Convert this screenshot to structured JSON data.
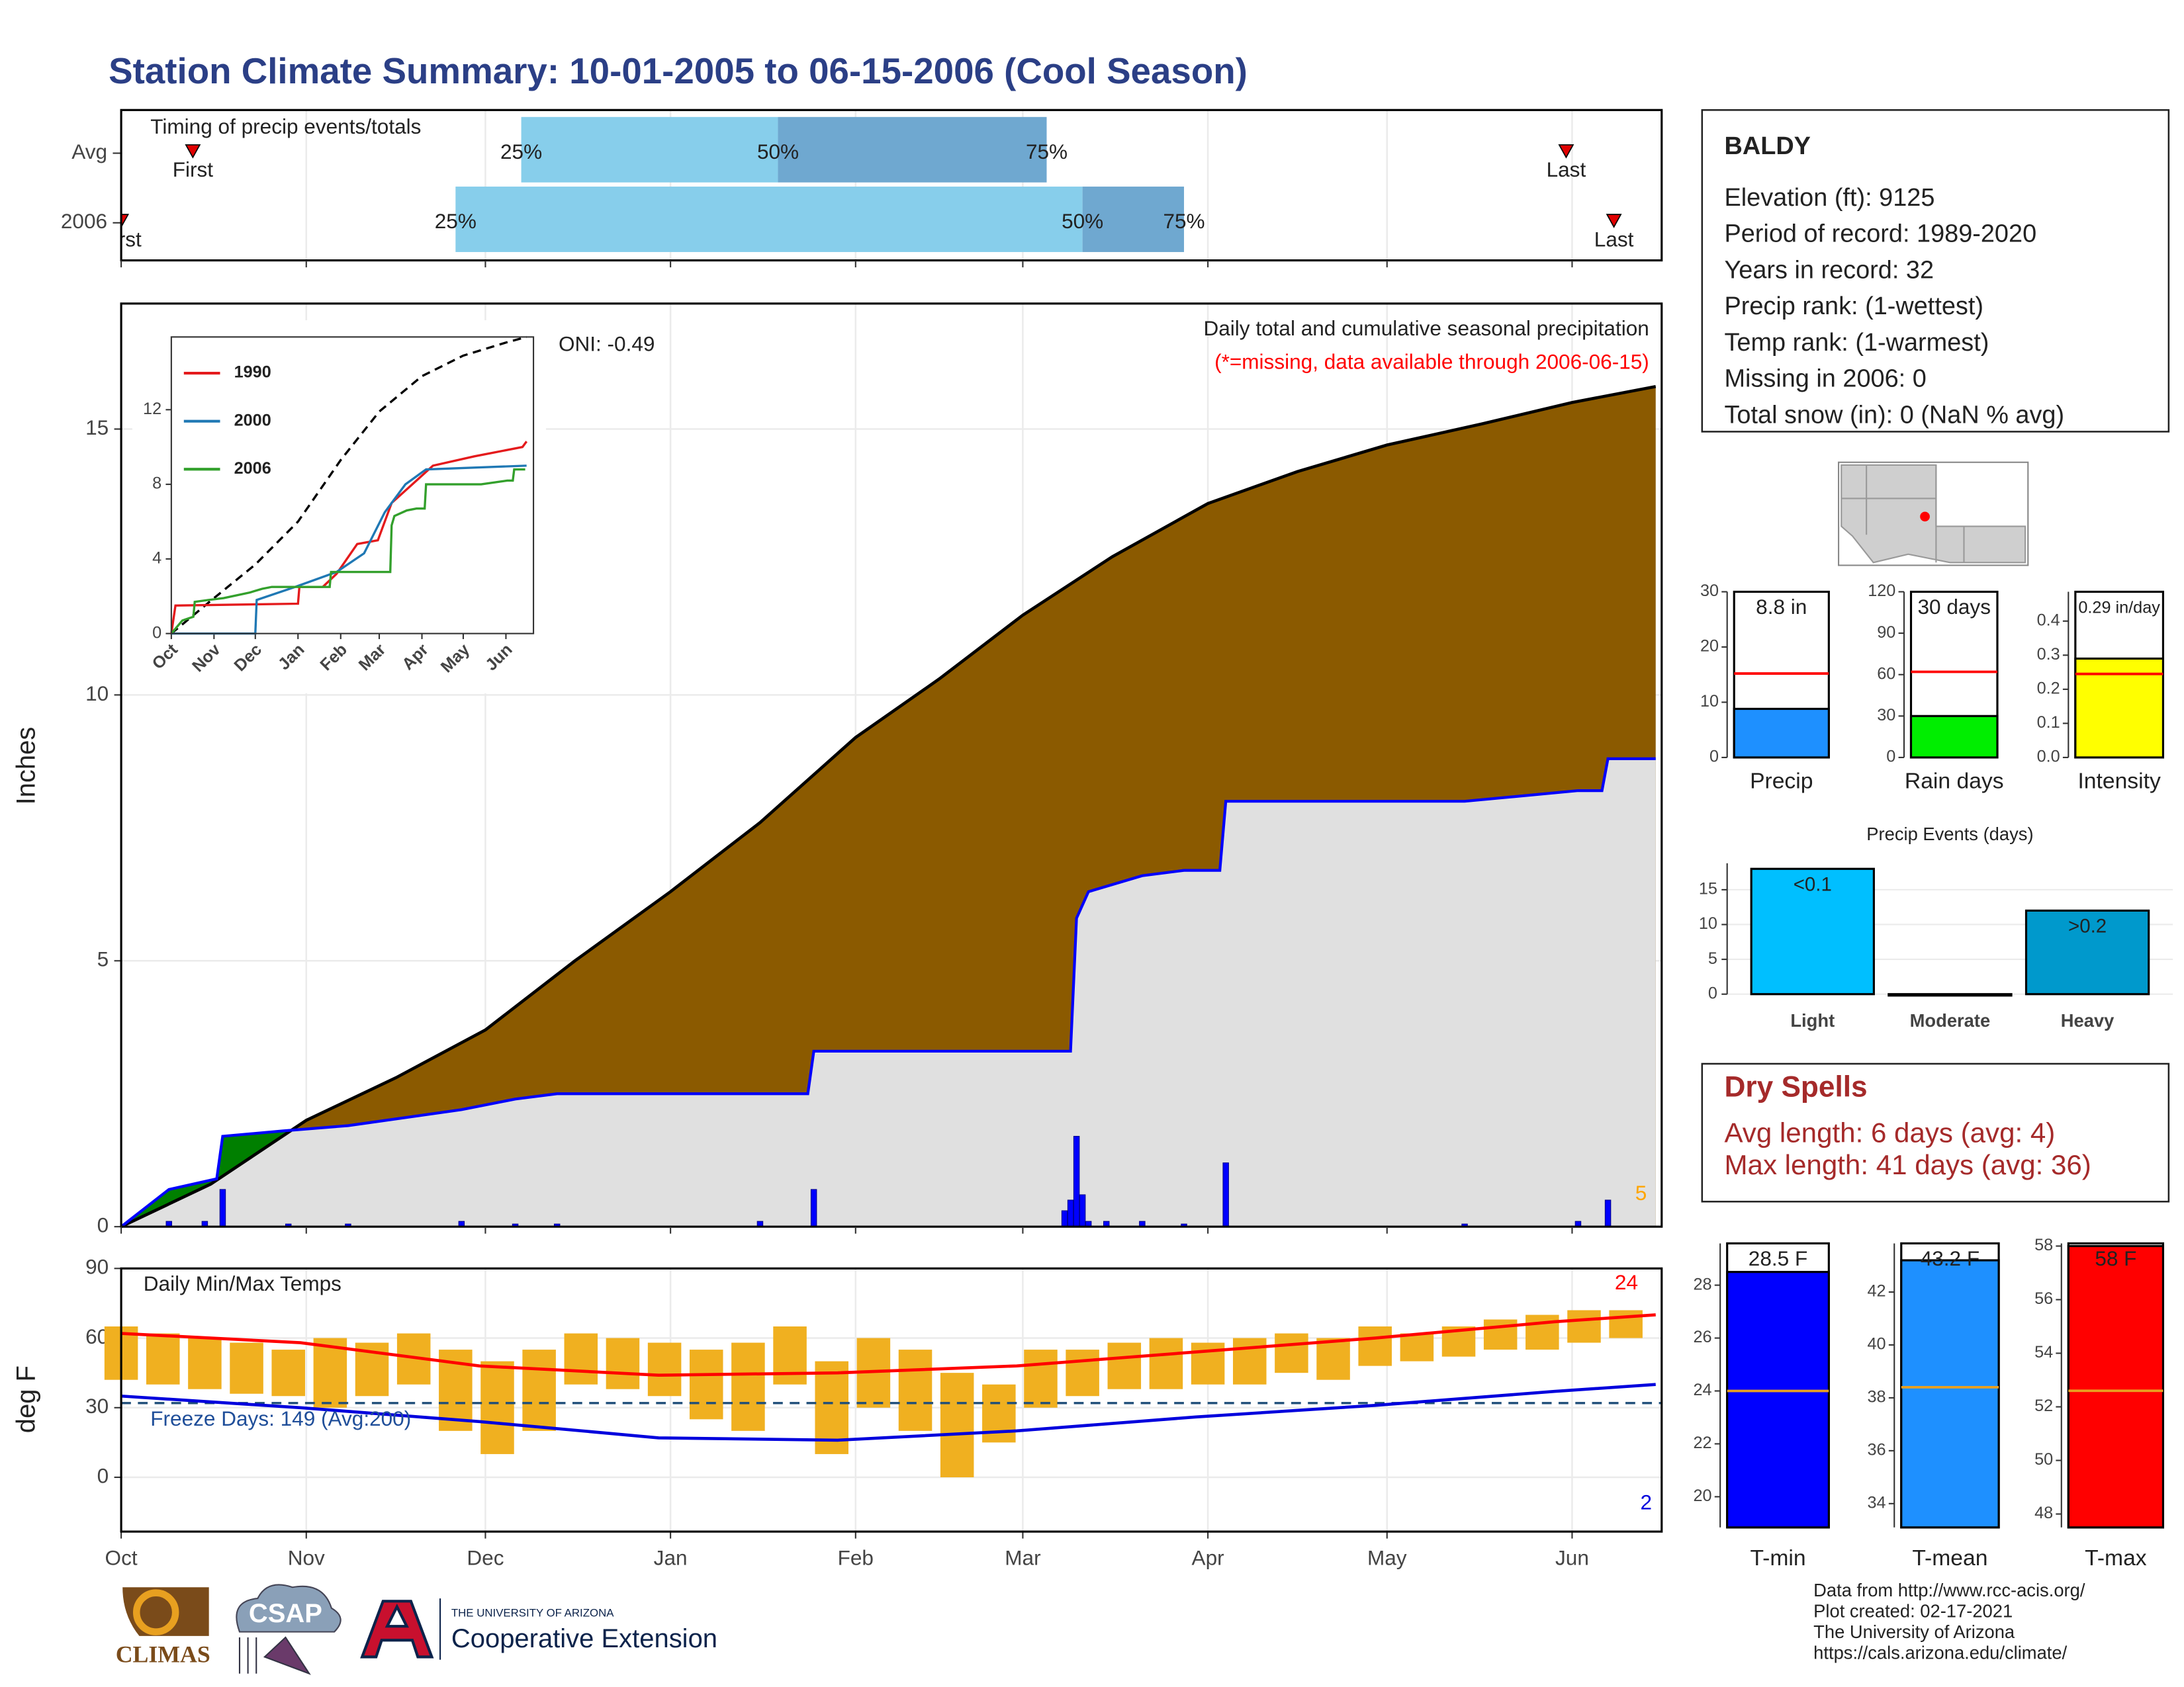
{
  "title": "Station Climate Summary: 10-01-2005 to 06-15-2006 (Cool Season)",
  "chart_data": [
    {
      "type": "timing",
      "title": "Timing of precip events/totals",
      "xlim": [
        0,
        258
      ],
      "categories": [
        "Avg",
        "2006"
      ],
      "first": [
        12,
        0
      ],
      "p25": [
        67,
        56
      ],
      "p50": [
        110,
        161
      ],
      "p75": [
        155,
        178
      ],
      "last": [
        242,
        250
      ],
      "labels": {
        "first": "First",
        "p25": "25%",
        "p50": "50%",
        "p75": "75%",
        "last": "Last"
      },
      "colors": {
        "light": "#87ceeb",
        "dark": "#6fa8d0",
        "marker": "#e00000"
      }
    },
    {
      "type": "cumulative",
      "title": "Daily total and cumulative seasonal precipitation",
      "subtitle": "(*=missing, data available through 2006-06-15)",
      "annotation": "ONI: -0.49",
      "annotation_right": "5",
      "ylabel": "Inches",
      "xlim": [
        0,
        258
      ],
      "ylim": [
        0,
        17.36
      ],
      "yticks": [
        0,
        5,
        10,
        15
      ],
      "grid": true,
      "colors": {
        "avg": "#8b5a00",
        "below": "#e0e0e0",
        "above": "#007f00",
        "season": "#0000ff",
        "daily": "#0000ff"
      },
      "avg": {
        "x": [
          0,
          15,
          31,
          46,
          61,
          76,
          92,
          107,
          123,
          137,
          151,
          166,
          182,
          197,
          212,
          228,
          243,
          257
        ],
        "values": [
          0,
          0.8,
          2.0,
          2.8,
          3.7,
          5.0,
          6.3,
          7.6,
          9.2,
          10.3,
          11.5,
          12.6,
          13.6,
          14.2,
          14.7,
          15.1,
          15.5,
          15.8
        ]
      },
      "season": {
        "x": [
          0,
          8,
          16,
          17,
          27,
          38,
          57,
          66,
          73,
          107,
          115,
          116,
          159,
          160,
          162,
          171,
          178,
          184,
          185,
          225,
          244,
          248,
          249,
          257
        ],
        "values": [
          0,
          0.7,
          0.9,
          1.7,
          1.8,
          1.9,
          2.2,
          2.4,
          2.5,
          2.5,
          2.5,
          3.3,
          3.3,
          5.8,
          6.3,
          6.6,
          6.7,
          6.7,
          8.0,
          8.0,
          8.2,
          8.2,
          8.8,
          8.8
        ]
      },
      "daily": {
        "x": [
          8,
          14,
          17,
          28,
          38,
          57,
          66,
          73,
          107,
          116,
          158,
          159,
          160,
          161,
          162,
          165,
          171,
          178,
          185,
          225,
          244,
          249
        ],
        "values": [
          0.1,
          0.1,
          0.7,
          0.05,
          0.05,
          0.1,
          0.05,
          0.05,
          0.1,
          0.7,
          0.3,
          0.5,
          1.7,
          0.6,
          0.1,
          0.1,
          0.1,
          0.05,
          1.2,
          0.05,
          0.1,
          0.5
        ]
      }
    },
    {
      "type": "line",
      "xlim": [
        0,
        263
      ],
      "ylim": [
        0,
        15.9
      ],
      "yticks": [
        0,
        4,
        8,
        12
      ],
      "xticks": [
        {
          "value": 0,
          "label": "Oct"
        },
        {
          "value": 31,
          "label": "Nov"
        },
        {
          "value": 61,
          "label": "Dec"
        },
        {
          "value": 92,
          "label": "Jan"
        },
        {
          "value": 123,
          "label": "Feb"
        },
        {
          "value": 151,
          "label": "Mar"
        },
        {
          "value": 182,
          "label": "Apr"
        },
        {
          "value": 212,
          "label": "May"
        },
        {
          "value": 243,
          "label": "Jun"
        }
      ],
      "reference": {
        "color": "#000000",
        "dashed": true,
        "x": [
          0,
          31,
          61,
          92,
          123,
          151,
          182,
          212,
          243,
          258
        ],
        "values": [
          0,
          1.9,
          3.7,
          6.0,
          9.3,
          11.9,
          13.8,
          14.9,
          15.6,
          15.9
        ]
      },
      "series": [
        {
          "name": "1990",
          "color": "#e41a1c",
          "x": [
            0,
            3,
            92,
            93,
            110,
            120,
            135,
            150,
            160,
            175,
            190,
            220,
            255,
            258
          ],
          "values": [
            0,
            1.5,
            1.6,
            2.5,
            2.5,
            3.2,
            4.8,
            5.0,
            7.0,
            8.0,
            9.0,
            9.5,
            10.0,
            10.3
          ]
        },
        {
          "name": "2000",
          "color": "#1f78b4",
          "x": [
            0,
            61,
            62,
            90,
            120,
            140,
            155,
            170,
            185,
            258
          ],
          "values": [
            0,
            0,
            1.8,
            2.5,
            3.3,
            4.3,
            6.5,
            8.0,
            8.8,
            9.0
          ]
        },
        {
          "name": "2006",
          "color": "#33a02c",
          "x": [
            0,
            8,
            16,
            17,
            27,
            38,
            57,
            66,
            73,
            107,
            115,
            116,
            159,
            160,
            162,
            171,
            178,
            184,
            185,
            225,
            244,
            248,
            249,
            257
          ],
          "values": [
            0,
            0.7,
            0.9,
            1.7,
            1.8,
            1.9,
            2.2,
            2.4,
            2.5,
            2.5,
            2.5,
            3.3,
            3.3,
            5.8,
            6.3,
            6.6,
            6.7,
            6.7,
            8.0,
            8.0,
            8.2,
            8.2,
            8.8,
            8.8
          ]
        }
      ]
    },
    {
      "type": "temp",
      "title": "Daily Min/Max Temps",
      "annotation": "Freeze Days: 149 (Avg:200)",
      "annotation_max": "24",
      "annotation_min": "2",
      "ylabel": "deg F",
      "xlim": [
        0,
        258
      ],
      "ylim": [
        -23.4,
        90
      ],
      "yticks": [
        0,
        30,
        60,
        90
      ],
      "grid": true,
      "freeze": 32,
      "xticks": [
        {
          "value": 0,
          "label": "Oct"
        },
        {
          "value": 31,
          "label": "Nov"
        },
        {
          "value": 61,
          "label": "Dec"
        },
        {
          "value": 92,
          "label": "Jan"
        },
        {
          "value": 123,
          "label": "Feb"
        },
        {
          "value": 151,
          "label": "Mar"
        },
        {
          "value": 182,
          "label": "Apr"
        },
        {
          "value": 212,
          "label": "May"
        },
        {
          "value": 243,
          "label": "Jun"
        }
      ],
      "colors": {
        "bars": "#f0b020",
        "avg_max": "#ff0000",
        "avg_min": "#0000dd",
        "freeze": "#1f4e79"
      },
      "daily": {
        "x": [
          0,
          7,
          14,
          21,
          28,
          35,
          42,
          49,
          56,
          63,
          70,
          77,
          84,
          91,
          98,
          105,
          112,
          119,
          126,
          133,
          140,
          147,
          154,
          161,
          168,
          175,
          182,
          189,
          196,
          203,
          210,
          217,
          224,
          231,
          238,
          245,
          252
        ],
        "tmax": [
          65,
          62,
          60,
          58,
          55,
          60,
          58,
          62,
          55,
          50,
          55,
          62,
          60,
          58,
          55,
          58,
          65,
          50,
          60,
          55,
          45,
          40,
          55,
          55,
          58,
          60,
          58,
          60,
          62,
          60,
          65,
          62,
          65,
          68,
          70,
          72,
          72
        ],
        "tmin": [
          42,
          40,
          38,
          36,
          35,
          30,
          35,
          40,
          20,
          10,
          20,
          40,
          38,
          35,
          25,
          20,
          40,
          10,
          30,
          20,
          0,
          15,
          30,
          35,
          38,
          38,
          40,
          40,
          45,
          42,
          48,
          50,
          52,
          55,
          55,
          58,
          60
        ]
      },
      "avg_max": {
        "x": [
          0,
          30,
          60,
          90,
          120,
          150,
          180,
          210,
          240,
          257
        ],
        "values": [
          62,
          58,
          48,
          44,
          45,
          48,
          54,
          60,
          67,
          70
        ]
      },
      "avg_min": {
        "x": [
          0,
          30,
          60,
          90,
          120,
          150,
          180,
          210,
          240,
          257
        ],
        "values": [
          35,
          30,
          24,
          17,
          16,
          20,
          26,
          31,
          37,
          40
        ]
      }
    },
    {
      "type": "bar_avg",
      "title": "Precip",
      "value": 8.8,
      "value_label": "8.8 in",
      "avg": 15.2,
      "color": "#1e90ff",
      "avg_color": "#ff0000",
      "ylim": [
        0,
        30
      ],
      "yticks": [
        0,
        10,
        20,
        30
      ]
    },
    {
      "type": "bar_avg",
      "title": "Rain days",
      "value": 30,
      "value_label": "30 days",
      "avg": 62,
      "color": "#00ee00",
      "avg_color": "#ff0000",
      "ylim": [
        0,
        120
      ],
      "yticks": [
        0,
        30,
        60,
        90,
        120
      ]
    },
    {
      "type": "bar_avg",
      "title": "Intensity",
      "value": 0.29,
      "value_label": "0.29 in/day",
      "avg": 0.245,
      "color": "#ffff00",
      "avg_color": "#ff0000",
      "ylim": [
        0,
        0.486
      ],
      "yticks": [
        {
          "value": 0,
          "label": "0.0"
        },
        0.1,
        0.2,
        0.3,
        0.4
      ]
    },
    {
      "type": "bar",
      "title": "Precip Events (days)",
      "categories": [
        "Light",
        "Moderate",
        "Heavy"
      ],
      "values": [
        18,
        0,
        12
      ],
      "value_labels": [
        "<0.1",
        null,
        ">0.2"
      ],
      "colors": [
        "#00bfff",
        "#00bfff",
        "#0099cc"
      ],
      "ylim": [
        0,
        18.8
      ],
      "yticks": [
        0,
        5,
        10,
        15
      ],
      "grid": true
    },
    {
      "type": "bar_avg",
      "title": "T-min",
      "value": 28.5,
      "value_label": "28.5 F",
      "avg": 24.0,
      "color": "#0000ff",
      "avg_color": "#e8a020",
      "ylim": [
        18.84,
        29.58
      ],
      "yticks": [
        20,
        22,
        24,
        26,
        28
      ]
    },
    {
      "type": "bar_avg",
      "title": "T-mean",
      "value": 43.2,
      "value_label": "43.2 F",
      "avg": 38.4,
      "color": "#1e90ff",
      "avg_color": "#e8a020",
      "ylim": [
        33.1,
        43.84
      ],
      "yticks": [
        34,
        36,
        38,
        40,
        42
      ]
    },
    {
      "type": "bar_avg",
      "title": "T-max",
      "value": 58,
      "value_label": "58 F",
      "avg": 52.6,
      "color": "#ff0000",
      "avg_color": "#e8a020",
      "ylim": [
        47.5,
        58.1
      ],
      "yticks": [
        48,
        50,
        52,
        54,
        56,
        58
      ]
    }
  ],
  "station": {
    "name": "BALDY",
    "lines": [
      "Elevation (ft): 9125",
      "Period of record: 1989-2020",
      "Years in record: 32",
      "Precip rank:  (1-wettest)",
      "Temp rank:  (1-warmest)",
      "Missing in 2006: 0",
      "Total snow (in): 0 (NaN % avg)"
    ]
  },
  "dry_spells": {
    "title": "Dry Spells",
    "lines": [
      "Avg length: 6 days (avg: 4)",
      "Max length: 41 days (avg: 36)"
    ]
  },
  "footer": {
    "lines": [
      "Data from http://www.rcc-acis.org/",
      "Plot created: 02-17-2021",
      "The University of Arizona",
      "https://cals.arizona.edu/climate/"
    ],
    "logos": {
      "climas": "CLIMAS",
      "csap": "CSAP",
      "university": "THE UNIVERSITY OF ARIZONA",
      "extension": "Cooperative Extension"
    }
  }
}
